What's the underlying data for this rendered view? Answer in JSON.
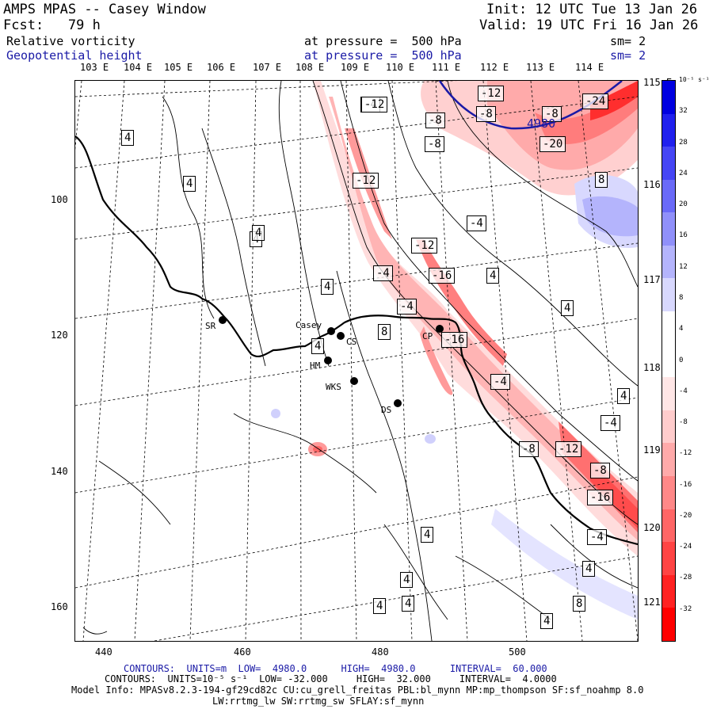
{
  "header": {
    "title": "AMPS MPAS -- Casey Window",
    "init": "Init: 12 UTC Tue 13 Jan 26",
    "fcst": "Fcst:   79 h",
    "valid": "Valid: 19 UTC Fri 16 Jan 26",
    "field1": {
      "name": "Relative vorticity",
      "level": "at pressure =  500 hPa",
      "sm": "sm= 2"
    },
    "field2": {
      "name": "Geopotential height",
      "level": "at pressure =  500 hPa",
      "sm": "sm= 2"
    }
  },
  "axes": {
    "top_lon": [
      "103 E",
      "104 E",
      "105 E",
      "106 E",
      "107 E",
      "108 E",
      "109 E",
      "110 E",
      "111 E",
      "112 E",
      "113 E",
      "114 E"
    ],
    "right_lon": [
      "115 E",
      "116 E",
      "117 E",
      "118 E",
      "119 E",
      "120 E",
      "121 E"
    ],
    "x_ticks": [
      "440",
      "460",
      "480",
      "500"
    ],
    "y_ticks": [
      "100",
      "120",
      "140",
      "160"
    ]
  },
  "stations": [
    {
      "id": "SR",
      "label": "SR"
    },
    {
      "id": "casey",
      "label": "Casey"
    },
    {
      "id": "cs",
      "label": "CS"
    },
    {
      "id": "hm",
      "label": "HM"
    },
    {
      "id": "wks",
      "label": "WKS"
    },
    {
      "id": "ds",
      "label": "DS"
    },
    {
      "id": "cp",
      "label": "CP"
    }
  ],
  "contour_labels": [
    "-12",
    "-4",
    "-8",
    "-12",
    "-8",
    "-8",
    "4",
    "-8",
    "-20",
    "-24",
    "4",
    "4",
    "8",
    "-12",
    "-4",
    "-12",
    "4",
    "-4",
    "4",
    "-16",
    "4",
    "4",
    "-4",
    "8",
    "-16",
    "4",
    "-4",
    "4",
    "-4",
    "-8",
    "-12",
    "-8",
    "-16",
    "-4",
    "4",
    "4",
    "4",
    "4",
    "4",
    "8",
    "4"
  ],
  "height_label": "4980",
  "colorbar": {
    "unit": "10⁻⁵ s⁻¹",
    "ticks": [
      "32",
      "28",
      "24",
      "20",
      "16",
      "12",
      "8",
      "4",
      "0",
      "-4",
      "-8",
      "-12",
      "-16",
      "-20",
      "-24",
      "-28",
      "-32"
    ],
    "colors": [
      "#0000e0",
      "#2020ee",
      "#4646f5",
      "#6a6af8",
      "#9090fa",
      "#b4b4fc",
      "#d8d8fe",
      "#ffffff",
      "#ffffff",
      "#ffe6e6",
      "#ffcccc",
      "#ffaaaa",
      "#ff8888",
      "#ff6666",
      "#ff4444",
      "#ff2222",
      "#ff0000"
    ]
  },
  "footer": {
    "line1_a": "CONTOURS:  UNITS=m  LOW=  4980.0",
    "line1_b": "HIGH=  4980.0",
    "line1_c": "INTERVAL=  60.000",
    "line2": "CONTOURS:  UNITS=10⁻⁵ s⁻¹  LOW= -32.000     HIGH=  32.000     INTERVAL=  4.0000",
    "line3": "Model Info: MPASv8.2.3-194-gf29cd82c CU:cu_grell_freitas PBL:bl_mynn MP:mp_thompson SF:sf_noahmp 8.0",
    "line4": "LW:rrtmg_lw SW:rrtmg_sw SFLAY:sf_mynn"
  }
}
